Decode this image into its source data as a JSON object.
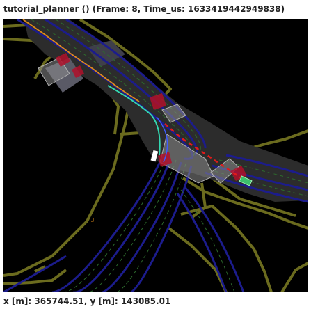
{
  "window": {
    "title": "tutorial_planner () (Frame: 8, Time_us: 1633419442949838)"
  },
  "status": {
    "coordinates": "x [m]: 365744.51, y [m]: 143085.01"
  },
  "map_colors": {
    "background": "#000000",
    "road_boundary": "#6b6b1e",
    "drivable_area": "#3a3a3a",
    "lane": "#1f1f8a",
    "lane_divider": "#2d6b2d",
    "crosswalk": "#8c8c8c",
    "stop_zone": "#b0102a",
    "route_line": "#e08a1a",
    "planned_path": "#33d6b0",
    "predicted_path": "#e01b1b",
    "ego_vehicle": "#ffffff",
    "agent_vehicle": "#3cc06c"
  },
  "map_icons": {
    "ego": "ego-vehicle-icon",
    "agent": "agent-vehicle-icon"
  }
}
